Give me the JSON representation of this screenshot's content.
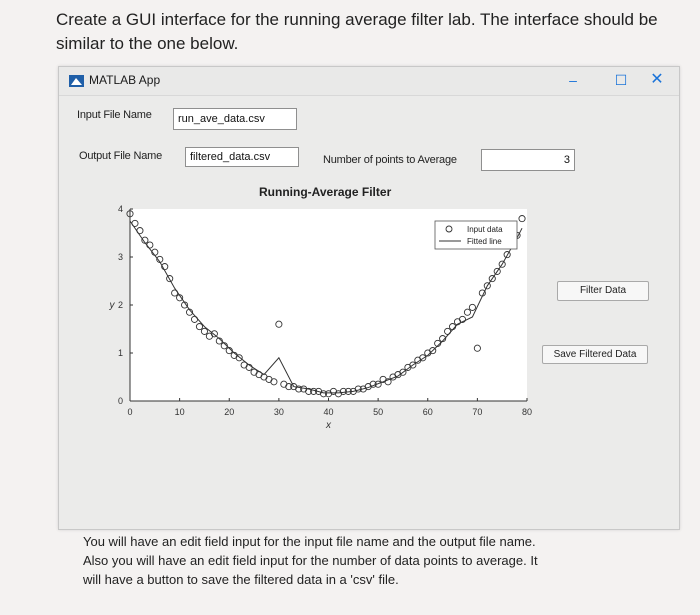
{
  "question": "Create a GUI interface for the running average filter lab. The interface should be similar to the one below.",
  "window": {
    "title": "MATLAB App",
    "minimize_symbol": "–",
    "maximize_symbol": "☐",
    "close_symbol": "✕"
  },
  "fields": {
    "input_label": "Input File Name",
    "input_value": "run_ave_data.csv",
    "output_label": "Output File Name",
    "output_value": "filtered_data.csv",
    "points_label": "Number of points to Average",
    "points_value": "3"
  },
  "buttons": {
    "filter": "Filter Data",
    "save": "Save Filtered Data"
  },
  "chart_data": {
    "type": "scatter",
    "title": "Running-Average Filter",
    "xlabel": "x",
    "ylabel": "y",
    "xlim": [
      0,
      80
    ],
    "ylim": [
      0,
      4
    ],
    "xticks": [
      "0",
      "10",
      "20",
      "30",
      "40",
      "50",
      "60",
      "70",
      "80"
    ],
    "yticks": [
      "0",
      "1",
      "2",
      "3",
      "4"
    ],
    "legend": [
      "Input data",
      "Fitted line"
    ],
    "legend_position": "top-right",
    "grid": false,
    "series": [
      {
        "name": "Input data",
        "x": [
          0,
          1,
          2,
          3,
          4,
          5,
          6,
          7,
          8,
          9,
          10,
          11,
          12,
          13,
          14,
          15,
          16,
          17,
          18,
          19,
          20,
          21,
          22,
          23,
          24,
          25,
          26,
          27,
          28,
          29,
          30,
          31,
          32,
          33,
          34,
          35,
          36,
          37,
          38,
          39,
          40,
          41,
          42,
          43,
          44,
          45,
          46,
          47,
          48,
          49,
          50,
          51,
          52,
          53,
          54,
          55,
          56,
          57,
          58,
          59,
          60,
          61,
          62,
          63,
          64,
          65,
          66,
          67,
          68,
          69,
          70,
          71,
          72,
          73,
          74,
          75,
          76,
          77,
          78,
          79
        ],
        "y": [
          3.9,
          3.7,
          3.55,
          3.35,
          3.25,
          3.1,
          2.95,
          2.8,
          2.55,
          2.25,
          2.15,
          2.0,
          1.85,
          1.7,
          1.55,
          1.45,
          1.35,
          1.4,
          1.25,
          1.15,
          1.05,
          0.95,
          0.9,
          0.75,
          0.7,
          0.6,
          0.55,
          0.5,
          0.45,
          0.4,
          1.6,
          0.35,
          0.3,
          0.3,
          0.25,
          0.25,
          0.2,
          0.2,
          0.2,
          0.15,
          0.15,
          0.2,
          0.15,
          0.2,
          0.2,
          0.2,
          0.25,
          0.25,
          0.3,
          0.35,
          0.35,
          0.45,
          0.4,
          0.5,
          0.55,
          0.6,
          0.7,
          0.75,
          0.85,
          0.9,
          1.0,
          1.05,
          1.2,
          1.3,
          1.45,
          1.55,
          1.65,
          1.7,
          1.85,
          1.95,
          1.1,
          2.25,
          2.4,
          2.55,
          2.7,
          2.85,
          3.05,
          3.25,
          3.45,
          3.8
        ]
      },
      {
        "name": "Fitted line",
        "x": [
          0,
          3,
          6,
          9,
          12,
          15,
          18,
          21,
          24,
          27,
          30,
          33,
          36,
          39,
          42,
          45,
          48,
          51,
          54,
          57,
          60,
          63,
          66,
          69,
          72,
          75,
          78,
          79
        ],
        "y": [
          3.75,
          3.3,
          2.9,
          2.35,
          1.9,
          1.55,
          1.3,
          1.0,
          0.75,
          0.55,
          0.9,
          0.3,
          0.25,
          0.17,
          0.17,
          0.2,
          0.28,
          0.4,
          0.52,
          0.75,
          0.95,
          1.25,
          1.6,
          1.75,
          2.4,
          2.85,
          3.4,
          3.6
        ]
      }
    ]
  },
  "footer": [
    "You will have an edit field input for the input file name and the output file name.",
    "Also you will have an edit field input for the number of data points to average. It",
    "will have a button to save the filtered data in a 'csv' file."
  ]
}
